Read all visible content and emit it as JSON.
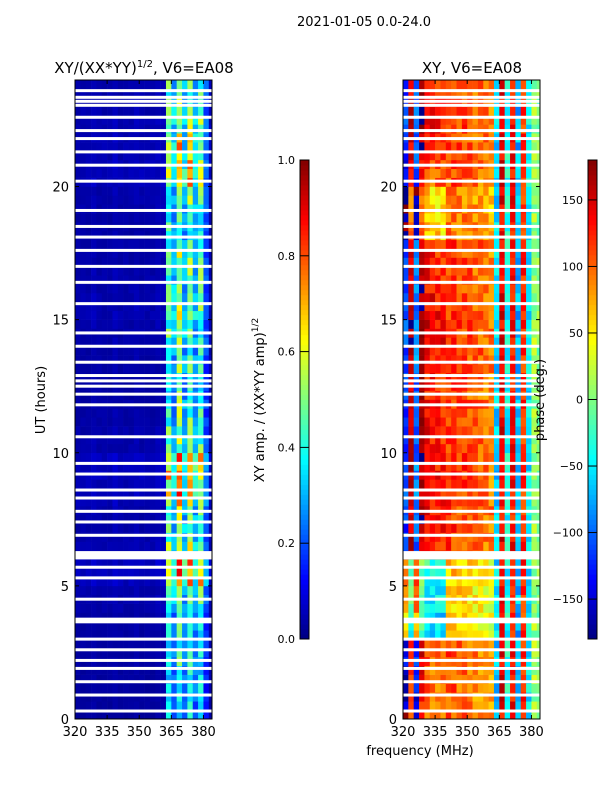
{
  "suptitle": "2021-01-05 0.0-24.0",
  "chart_data": [
    {
      "type": "heatmap",
      "title": "XY/(XX*YY)^1/2, V6=EA08",
      "title_main": "XY/(XX*YY)",
      "title_sup": "1/2",
      "title_tail": ", V6=EA08",
      "xlabel": "",
      "ylabel": "UT (hours)",
      "xlim": [
        320,
        384
      ],
      "ylim": [
        0,
        24
      ],
      "xticks": [
        "320",
        "335",
        "350",
        "365",
        "380"
      ],
      "yticks": [
        "0",
        "5",
        "10",
        "15",
        "20"
      ],
      "freq_bin_start": 320,
      "freq_bin_width": 2.5,
      "column_values": [
        0.04,
        0.04,
        0.04,
        0.05,
        0.04,
        0.04,
        0.04,
        0.05,
        0.04,
        0.04,
        0.04,
        0.05,
        0.04,
        0.04,
        0.04,
        0.05,
        0.05,
        0.45,
        0.3,
        0.55,
        0.3,
        0.5,
        0.3,
        0.45,
        0.2,
        0.05
      ],
      "row_scale": [
        0.7,
        0.75,
        0.8,
        0.8,
        1.0,
        1.4,
        1.1,
        1.0,
        1.3,
        1.45,
        1.0,
        0.9,
        0.85,
        0.9,
        1.0,
        1.1,
        1.0,
        0.95,
        0.9,
        1.0,
        1.3,
        1.2,
        1.1,
        1.0
      ],
      "colorbar": {
        "label": "XY amp. / (XX*YY amp)",
        "label_sup": "1/2",
        "range": [
          0,
          1
        ],
        "ticks": [
          "0.0",
          "0.2",
          "0.4",
          "0.6",
          "0.8",
          "1.0"
        ]
      }
    },
    {
      "type": "heatmap",
      "title": "XY, V6=EA08",
      "xlabel": "frequency (MHz)",
      "xlim": [
        320,
        384
      ],
      "ylim": [
        0,
        24
      ],
      "xticks": [
        "320",
        "335",
        "350",
        "365",
        "380"
      ],
      "yticks": [
        "0",
        "5",
        "10",
        "15",
        "20"
      ],
      "freq_bin_start": 320,
      "freq_bin_width": 2.5,
      "column_values": [
        -120,
        150,
        -100,
        160,
        130,
        125,
        120,
        120,
        115,
        115,
        110,
        110,
        105,
        100,
        100,
        95,
        90,
        -60,
        140,
        -40,
        130,
        -70,
        120,
        -50,
        10,
        0
      ],
      "row_offset": [
        -40,
        -30,
        -20,
        -180,
        -170,
        -160,
        0,
        5,
        10,
        10,
        5,
        0,
        0,
        10,
        15,
        10,
        5,
        0,
        -60,
        -70,
        -20,
        0,
        10,
        0
      ],
      "colorbar": {
        "label": "phase (deg.)",
        "range": [
          -180,
          180
        ],
        "ticks": [
          "150",
          "100",
          "50",
          "0",
          "−50",
          "−100",
          "−150"
        ]
      }
    }
  ],
  "flagged_hours": [
    0.3,
    0.9,
    1.4,
    1.9,
    2.2,
    2.6,
    3.0,
    3.65,
    3.75,
    4.5,
    5.3,
    5.7,
    6.05,
    6.15,
    6.25,
    6.9,
    7.4,
    7.8,
    8.3,
    8.6,
    9.2,
    9.6,
    10.6,
    11.8,
    12.2,
    12.5,
    12.7,
    12.9,
    13.4,
    14.0,
    14.5,
    15.6,
    16.4,
    17.0,
    17.6,
    18.1,
    18.5,
    19.1,
    20.2,
    20.8,
    21.3,
    21.8,
    22.1,
    22.6,
    23.05,
    23.2,
    23.35,
    23.6
  ]
}
